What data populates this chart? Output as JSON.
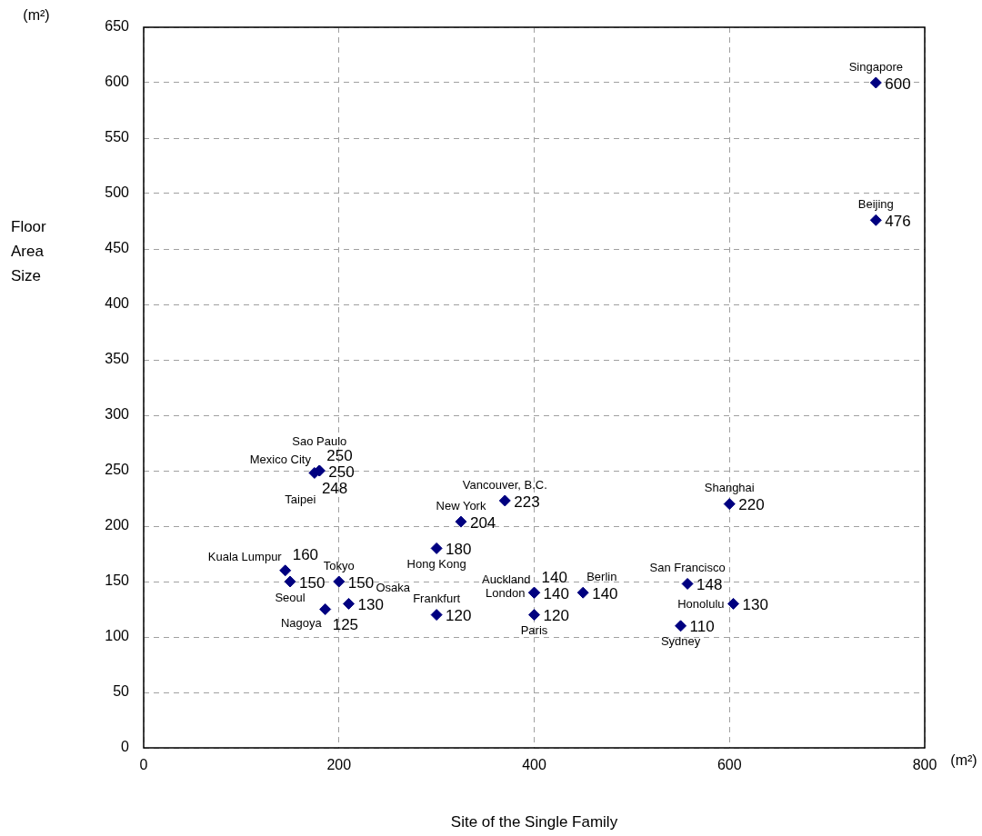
{
  "chart_data": {
    "type": "scatter",
    "xlabel": "Site of the Single Family",
    "ylabel": "Floor Area Size",
    "xlim": [
      0,
      800
    ],
    "xticks": [
      0,
      200,
      400,
      600,
      800
    ],
    "ylim": [
      0,
      650
    ],
    "yticks": [
      0,
      50,
      100,
      150,
      200,
      250,
      300,
      350,
      400,
      450,
      500,
      550,
      600,
      650
    ],
    "grid": true,
    "marker": "diamond",
    "data_labels": true,
    "series": [
      {
        "color": "#000080",
        "x": [
          750,
          750,
          175,
          180,
          180,
          325,
          370,
          600,
          300,
          145,
          150,
          200,
          186,
          210,
          300,
          400,
          400,
          450,
          400,
          557,
          604,
          550
        ],
        "values": [
          600,
          476,
          248,
          250,
          250,
          204,
          223,
          220,
          180,
          160,
          150,
          150,
          125,
          130,
          120,
          140,
          140,
          140,
          120,
          148,
          130,
          110
        ]
      }
    ],
    "annotations": [
      "(m²)",
      "(m²)",
      {
        "text": "Singapore",
        "x": 750,
        "y": 600
      },
      {
        "text": "Beijing",
        "x": 750,
        "y": 476
      },
      {
        "text": "Mexico City",
        "x": 175,
        "y": 248
      },
      {
        "text": "Sao Paulo",
        "x": 180,
        "y": 250
      },
      {
        "text": "Taipei",
        "x": 180,
        "y": 250
      },
      {
        "text": "New York",
        "x": 325,
        "y": 204
      },
      {
        "text": "Vancouver, B.C.",
        "x": 370,
        "y": 223
      },
      {
        "text": "Shanghai",
        "x": 600,
        "y": 220
      },
      {
        "text": "Hong Kong",
        "x": 300,
        "y": 180
      },
      {
        "text": "Kuala Lumpur",
        "x": 145,
        "y": 160
      },
      {
        "text": "Seoul",
        "x": 150,
        "y": 150
      },
      {
        "text": "Tokyo",
        "x": 200,
        "y": 150
      },
      {
        "text": "Nagoya",
        "x": 186,
        "y": 125
      },
      {
        "text": "Osaka",
        "x": 210,
        "y": 130
      },
      {
        "text": "Frankfurt",
        "x": 300,
        "y": 120
      },
      {
        "text": "Auckland",
        "x": 400,
        "y": 140
      },
      {
        "text": "London",
        "x": 400,
        "y": 140
      },
      {
        "text": "Berlin",
        "x": 450,
        "y": 140
      },
      {
        "text": "Paris",
        "x": 400,
        "y": 120
      },
      {
        "text": "San Francisco",
        "x": 557,
        "y": 148
      },
      {
        "text": "Honolulu",
        "x": 604,
        "y": 130
      },
      {
        "text": "Sydney",
        "x": 550,
        "y": 110
      }
    ]
  }
}
